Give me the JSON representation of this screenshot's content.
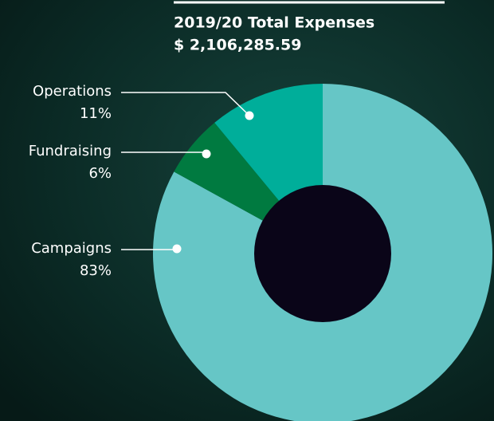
{
  "chart_data": {
    "type": "pie",
    "donut": true,
    "title": "2019/20 Total Expenses",
    "subtitle": "$ 2,106,285.59",
    "categories": [
      "Campaigns",
      "Fundraising",
      "Operations"
    ],
    "values": [
      83,
      6,
      11
    ],
    "value_labels": [
      "83%",
      "6%",
      "11%"
    ],
    "colors": [
      "#66c6c6",
      "#007a40",
      "#00ae9a"
    ]
  }
}
